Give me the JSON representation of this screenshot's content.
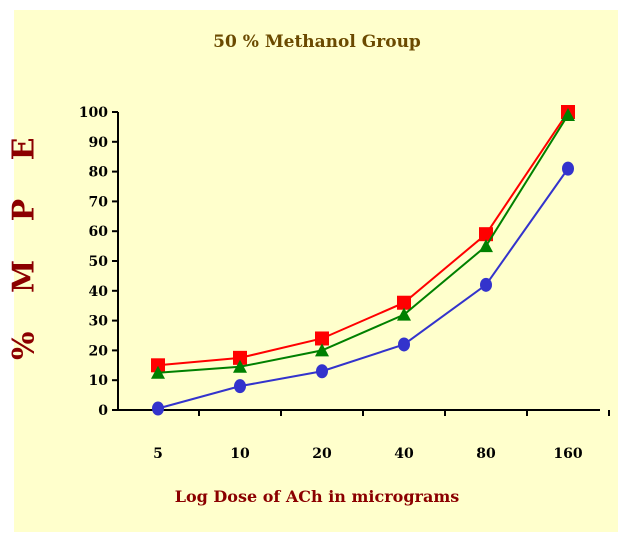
{
  "chart_data": {
    "type": "line",
    "title": "50 % Methanol Group",
    "xlabel": "Log Dose of ACh in micrograms",
    "ylabel": "% M P E",
    "categories": [
      "5",
      "10",
      "20",
      "40",
      "80",
      "160"
    ],
    "yticks": [
      "0",
      "10",
      "20",
      "30",
      "40",
      "50",
      "60",
      "70",
      "80",
      "90",
      "100"
    ],
    "ylim": [
      0,
      100
    ],
    "grid": false,
    "series": [
      {
        "marker": "square",
        "color": "#ff0000",
        "values": [
          15,
          17.5,
          24,
          36,
          59,
          100
        ]
      },
      {
        "marker": "triangle",
        "color": "#008000",
        "values": [
          12.5,
          14.5,
          20,
          32,
          55,
          99
        ]
      },
      {
        "marker": "circle",
        "color": "#3333cc",
        "values": [
          0.5,
          8,
          13,
          22,
          42,
          81
        ]
      }
    ]
  }
}
